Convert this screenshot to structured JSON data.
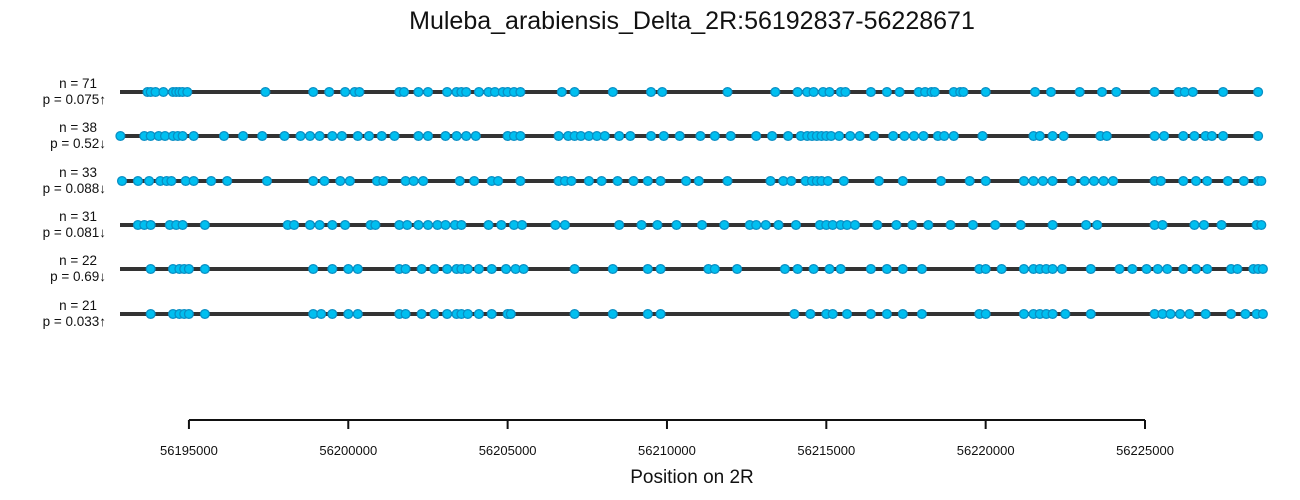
{
  "chart_data": {
    "type": "scatter",
    "title": "Muleba_arabiensis_Delta_2R:56192837-56228671",
    "xlabel": "Position on 2R",
    "ylabel": "",
    "xlim": [
      56192837,
      56228671
    ],
    "x_ticks": [
      56195000,
      56200000,
      56205000,
      56210000,
      56215000,
      56220000,
      56225000
    ],
    "x_tick_labels": [
      "56195000",
      "56200000",
      "56205000",
      "56210000",
      "56215000",
      "56220000",
      "56225000"
    ],
    "grid": false,
    "legend": "none",
    "colors": {
      "line": "#333333",
      "point_fill": "#00bff0",
      "point_stroke": "#0a8fc4",
      "significant": "#e00000",
      "text": "#111111"
    },
    "series": [
      {
        "n_label": "n = 71",
        "p_label": "p = 0.075↑",
        "significant": false,
        "positions": [
          56193700,
          56193800,
          56193950,
          56194200,
          56194500,
          56194600,
          56194700,
          56194800,
          56194950,
          56197400,
          56198900,
          56199400,
          56199900,
          56200200,
          56200350,
          56201600,
          56201750,
          56202200,
          56202500,
          56203100,
          56203400,
          56203550,
          56203700,
          56204100,
          56204400,
          56204600,
          56204850,
          56205000,
          56205200,
          56205400,
          56206700,
          56207100,
          56208300,
          56209500,
          56209850,
          56211900,
          56213400,
          56214100,
          56214400,
          56214600,
          56214900,
          56215100,
          56215450,
          56215600,
          56216400,
          56216900,
          56217300,
          56217900,
          56218100,
          56218300,
          56218400,
          56219000,
          56219200,
          56219300,
          56220000,
          56221550,
          56222050,
          56222950,
          56223650,
          56224100,
          56225300,
          56226050,
          56226250,
          56226500,
          56227450,
          56228550
        ]
      },
      {
        "n_label": "n = 38",
        "p_label": "p = 0.52↓",
        "significant": false,
        "positions": [
          56192850,
          56193600,
          56193800,
          56194050,
          56194250,
          56194500,
          56194650,
          56194800,
          56195150,
          56196100,
          56196700,
          56197300,
          56198000,
          56198500,
          56198800,
          56199100,
          56199500,
          56199800,
          56200300,
          56200650,
          56201050,
          56201450,
          56202200,
          56202500,
          56203050,
          56203400,
          56203700,
          56204000,
          56205000,
          56205200,
          56205400,
          56206600,
          56206900,
          56207100,
          56207300,
          56207550,
          56207800,
          56208050,
          56208500,
          56208850,
          56209500,
          56209900,
          56210400,
          56211050,
          56211500,
          56212000,
          56212800,
          56213300,
          56213800,
          56214200,
          56214400,
          56214550,
          56214700,
          56214850,
          56215000,
          56215150,
          56215400,
          56215750,
          56216050,
          56216500,
          56217100,
          56217450,
          56217750,
          56218050,
          56218500,
          56218700,
          56219000,
          56219900,
          56221500,
          56221700,
          56222100,
          56222450,
          56223600,
          56223800,
          56225300,
          56225600,
          56226200,
          56226550,
          56226900,
          56227100,
          56227450,
          56228550
        ]
      },
      {
        "n_label": "n = 33",
        "p_label": "p = 0.088↓",
        "significant": false,
        "positions": [
          56192900,
          56193400,
          56193750,
          56194100,
          56194300,
          56194450,
          56194900,
          56195150,
          56195700,
          56196200,
          56197450,
          56198900,
          56199250,
          56199750,
          56200050,
          56200900,
          56201100,
          56201800,
          56202050,
          56202350,
          56203500,
          56203950,
          56204500,
          56204700,
          56205400,
          56206600,
          56206800,
          56207000,
          56207550,
          56207950,
          56208450,
          56208950,
          56209400,
          56209800,
          56210600,
          56211000,
          56211900,
          56213250,
          56213650,
          56213900,
          56214350,
          56214550,
          56214700,
          56214850,
          56215050,
          56215550,
          56216650,
          56217400,
          56218600,
          56219500,
          56220000,
          56221200,
          56221500,
          56221800,
          56222100,
          56222700,
          56223100,
          56223400,
          56223700,
          56224000,
          56225300,
          56225500,
          56226200,
          56226600,
          56226950,
          56227600,
          56228100,
          56228550,
          56228650
        ]
      },
      {
        "n_label": "n = 31",
        "p_label": "p = 0.081↓",
        "significant": false,
        "positions": [
          56193400,
          56193600,
          56193800,
          56194400,
          56194600,
          56194800,
          56195500,
          56198100,
          56198300,
          56198800,
          56199100,
          56199500,
          56199900,
          56200700,
          56200850,
          56201600,
          56201850,
          56202200,
          56202500,
          56202800,
          56203050,
          56203350,
          56203550,
          56204400,
          56204800,
          56205200,
          56205450,
          56206500,
          56206800,
          56208500,
          56209200,
          56209700,
          56210300,
          56211100,
          56211800,
          56212600,
          56212800,
          56213100,
          56213500,
          56214050,
          56214800,
          56215000,
          56215200,
          56215450,
          56215650,
          56215900,
          56216600,
          56217200,
          56217700,
          56218200,
          56218900,
          56219600,
          56220300,
          56221100,
          56222100,
          56223150,
          56223500,
          56225300,
          56225550,
          56226550,
          56226850,
          56227400,
          56228500,
          56228650
        ]
      },
      {
        "n_label": "n = 22",
        "p_label": "p = 0.69↓",
        "significant": false,
        "positions": [
          56193800,
          56194500,
          56194700,
          56194850,
          56195000,
          56195500,
          56198900,
          56199500,
          56200000,
          56200300,
          56201600,
          56201800,
          56202300,
          56202700,
          56203100,
          56203400,
          56203550,
          56203750,
          56204100,
          56204500,
          56204950,
          56205250,
          56205500,
          56207100,
          56208300,
          56209400,
          56209800,
          56211300,
          56211500,
          56212200,
          56213700,
          56214100,
          56214600,
          56215100,
          56215450,
          56216400,
          56216900,
          56217400,
          56218000,
          56219800,
          56220000,
          56220500,
          56221200,
          56221500,
          56221700,
          56221900,
          56222100,
          56222400,
          56223300,
          56224200,
          56224600,
          56225050,
          56225400,
          56225700,
          56226200,
          56226600,
          56226950,
          56227700,
          56227900,
          56228400,
          56228550,
          56228700
        ]
      },
      {
        "n_label": "n = 21",
        "p_label": "p = 0.033↑",
        "significant": true,
        "positions": [
          56193800,
          56194500,
          56194700,
          56194850,
          56195000,
          56195500,
          56198900,
          56199150,
          56199500,
          56200000,
          56200300,
          56201600,
          56201800,
          56202300,
          56202700,
          56203100,
          56203400,
          56203550,
          56203750,
          56204100,
          56204500,
          56205000,
          56205100,
          56207100,
          56208300,
          56209400,
          56209800,
          56214000,
          56214500,
          56215000,
          56215200,
          56215650,
          56216400,
          56216900,
          56217400,
          56218000,
          56219800,
          56220000,
          56221200,
          56221500,
          56221700,
          56221900,
          56222100,
          56222500,
          56223300,
          56225300,
          56225550,
          56225800,
          56226100,
          56226400,
          56226900,
          56227700,
          56228150,
          56228500,
          56228700
        ]
      }
    ]
  }
}
